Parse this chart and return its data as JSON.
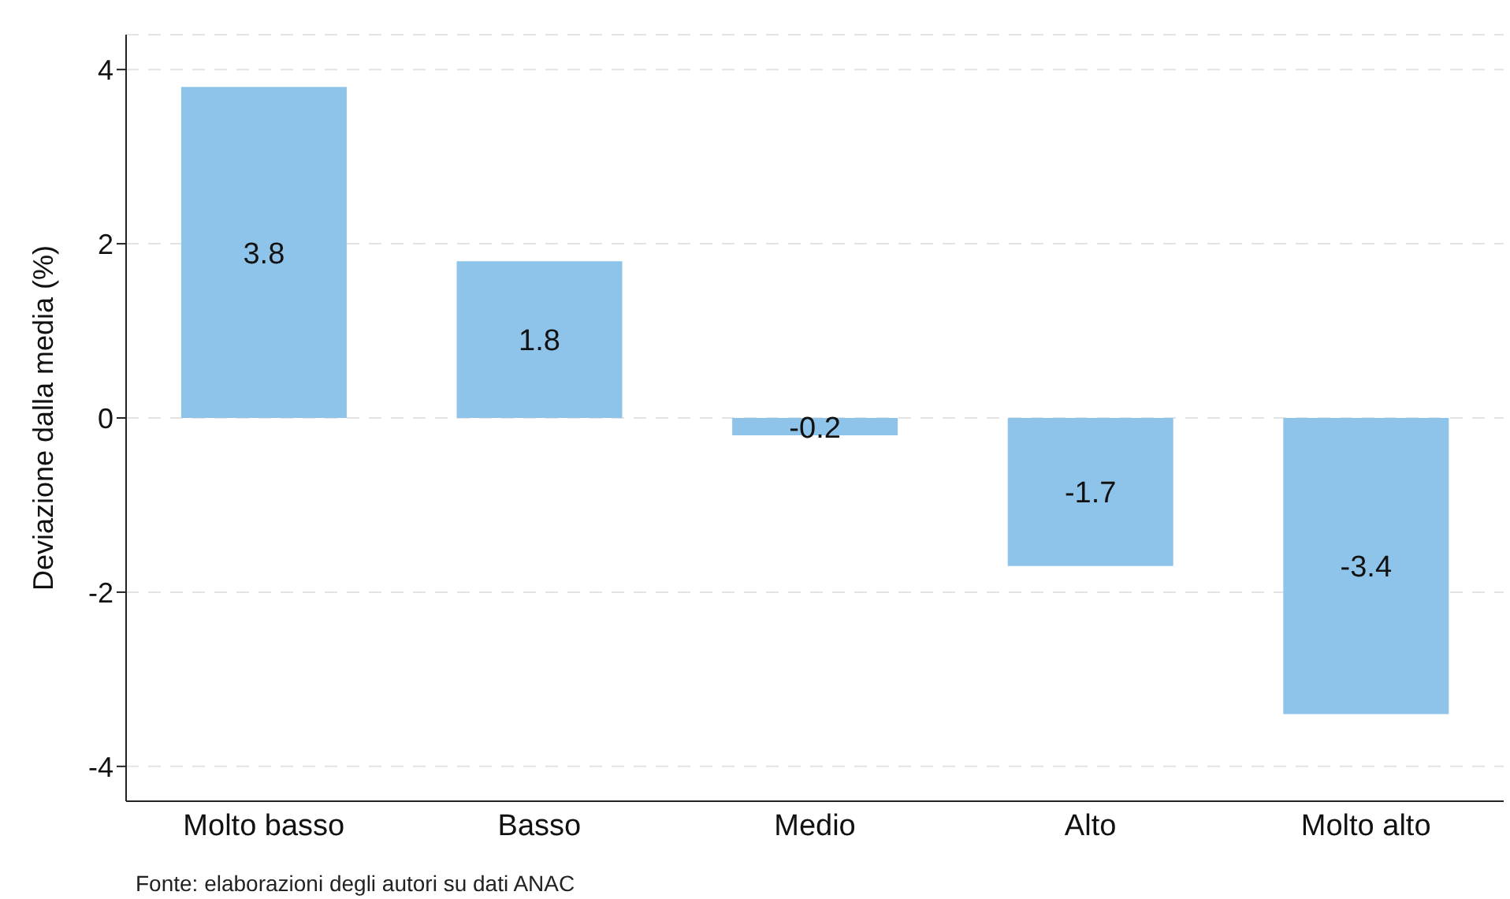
{
  "chart_data": {
    "type": "bar",
    "ylabel": "Deviazione dalla media (%)",
    "categories": [
      "Molto basso",
      "Basso",
      "Medio",
      "Alto",
      "Molto alto"
    ],
    "values": [
      3.8,
      1.8,
      -0.2,
      -1.7,
      -3.4
    ],
    "color": "#8ec4ea",
    "ylim": [
      -4.4,
      4.4
    ],
    "yticks": [
      -4,
      -2,
      0,
      2,
      4
    ],
    "grid": "y",
    "data_labels": true,
    "annotations": [
      "Fonte: elaborazioni degli autori su dati ANAC"
    ]
  }
}
